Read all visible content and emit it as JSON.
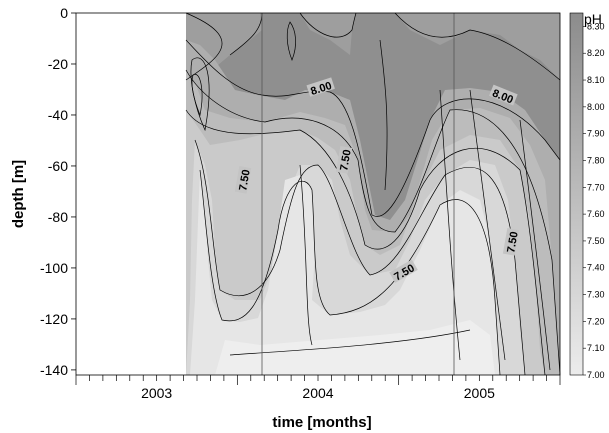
{
  "chart_data": {
    "type": "heatmap",
    "xlabel": "time [months]",
    "ylabel": "depth [m]",
    "x_year_labels": [
      "2003",
      "2004",
      "2005"
    ],
    "y_ticks": [
      0,
      -20,
      -40,
      -60,
      -80,
      -100,
      -120,
      -140
    ],
    "y_tick_labels": [
      "0",
      "-20",
      "-40",
      "-60",
      "-80",
      "-100",
      "-120",
      "-140"
    ],
    "ylim": [
      -142,
      0
    ],
    "colorbar": {
      "title": "pH",
      "ticks": [
        "8.30",
        "8.20",
        "8.10",
        "8.00",
        "7.90",
        "7.80",
        "7.70",
        "7.60",
        "7.50",
        "7.40",
        "7.30",
        "7.20",
        "7.10",
        "7.00"
      ],
      "range": [
        7.0,
        8.35
      ]
    },
    "contour_labels": [
      "8.00",
      "8.00",
      "7.50",
      "7.50",
      "7.50",
      "7.50"
    ],
    "colors": {
      "high": "#8c8c8c",
      "low": "#ececec",
      "line": "#000000"
    }
  }
}
